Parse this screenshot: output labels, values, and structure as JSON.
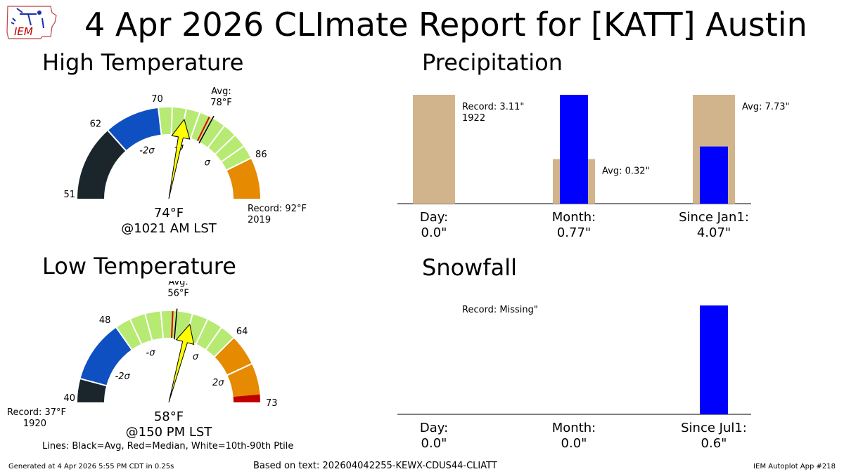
{
  "header": {
    "title": "4 Apr 2026 CLImate Report for [KATT] Austin",
    "logo_text": "IEM"
  },
  "footer": {
    "generated": "Generated at 4 Apr 2026 5:55 PM CDT in 0.25s",
    "based_on": "Based on text: 202604042255-KEWX-CDUS44-CLIATT",
    "app": "IEM Autoplot App #218",
    "legend_note": "Lines: Black=Avg, Red=Median, White=10th-90th Ptile"
  },
  "colors": {
    "gauge_band": [
      "#1b262c",
      "#0e4fc1",
      "#b7ea72",
      "#b7ea72",
      "#e58a01",
      "#c00000"
    ],
    "bar_avg": "#d2b48c",
    "bar_obs": "#0000ff",
    "needle": "#ffff00"
  },
  "chart_data": [
    {
      "type": "gauge",
      "id": "high",
      "title": "High Temperature",
      "range": [
        51,
        92
      ],
      "min_label": "51",
      "bands": [
        {
          "from": 51,
          "to": 62,
          "color_index": 0
        },
        {
          "from": 62,
          "to": 70,
          "color_index": 1
        },
        {
          "from": 70,
          "to": 86,
          "color_index": 2
        },
        {
          "from": 86,
          "to": 92,
          "color_index": 4
        }
      ],
      "boundary_labels": [
        {
          "value": 62,
          "text": "62"
        },
        {
          "value": 70,
          "text": "70"
        },
        {
          "value": 86,
          "text": "86"
        }
      ],
      "sigma_labels": [
        {
          "value": 66,
          "text": "-2σ"
        },
        {
          "value": 74,
          "text": "-σ"
        },
        {
          "value": 82,
          "text": "σ"
        }
      ],
      "ptile_ticks": [
        62,
        70,
        72,
        74,
        76,
        78,
        80,
        82,
        84,
        86
      ],
      "avg": 78,
      "avg_label": "Avg:",
      "avg_value_label": "78°F",
      "median": 77.5,
      "observed": 74,
      "observed_label": "74°F",
      "time_label": "@1021 AM LST",
      "record_label": "Record: 92°F",
      "record_year": "2019",
      "record_side": "right"
    },
    {
      "type": "gauge",
      "id": "low",
      "title": "Low Temperature",
      "range": [
        37,
        73
      ],
      "min_label": "40",
      "bands": [
        {
          "from": 37,
          "to": 40,
          "color_index": 0
        },
        {
          "from": 40,
          "to": 48,
          "color_index": 1
        },
        {
          "from": 48,
          "to": 64,
          "color_index": 2
        },
        {
          "from": 64,
          "to": 72,
          "color_index": 4
        },
        {
          "from": 72,
          "to": 73,
          "color_index": 5
        }
      ],
      "boundary_labels": [
        {
          "value": 48,
          "text": "48"
        },
        {
          "value": 64,
          "text": "64"
        },
        {
          "value": 73,
          "text": "73"
        }
      ],
      "sigma_labels": [
        {
          "value": 43,
          "text": "-2σ"
        },
        {
          "value": 51,
          "text": "-σ"
        },
        {
          "value": 61,
          "text": "σ"
        },
        {
          "value": 68.5,
          "text": "2σ"
        }
      ],
      "ptile_ticks": [
        40,
        48,
        50,
        52,
        54,
        56,
        58,
        60,
        62,
        64,
        68
      ],
      "avg": 56,
      "avg_label": "Avg:",
      "avg_value_label": "56°F",
      "median": 55.5,
      "observed": 58,
      "observed_label": "58°F",
      "time_label": "@150 PM LST",
      "record_label": "Record: 37°F",
      "record_year": "1920",
      "record_side": "left"
    },
    {
      "type": "bar",
      "id": "precip",
      "title": "Precipitation",
      "categories": [
        "Day:",
        "Month:",
        "Since Jan1:"
      ],
      "values_text": [
        "0.0\"",
        "0.77\"",
        "4.07\""
      ],
      "ylim_frac": [
        0,
        1
      ],
      "groups": [
        {
          "reference": 1.0,
          "reference_label": "Record: 3.11\"",
          "reference_sub": "1922",
          "observed": 0.0
        },
        {
          "reference": 0.41,
          "reference_label": "Avg: 0.32\"",
          "reference_sub": "",
          "observed": 1.0
        },
        {
          "reference": 1.0,
          "reference_label": "Avg: 7.73\"",
          "reference_sub": "",
          "observed": 0.525
        }
      ]
    },
    {
      "type": "bar",
      "id": "snow",
      "title": "Snowfall",
      "categories": [
        "Day:",
        "Month:",
        "Since Jul1:"
      ],
      "values_text": [
        "0.0\"",
        "0.0\"",
        "0.6\""
      ],
      "ylim_frac": [
        0,
        1
      ],
      "groups": [
        {
          "reference": 0.0,
          "reference_label": "Record: Missing\"",
          "reference_sub": "",
          "observed": 0.0
        },
        {
          "reference": 0.0,
          "reference_label": "",
          "reference_sub": "",
          "observed": 0.0
        },
        {
          "reference": 0.0,
          "reference_label": "",
          "reference_sub": "",
          "observed": 1.0
        }
      ]
    }
  ]
}
